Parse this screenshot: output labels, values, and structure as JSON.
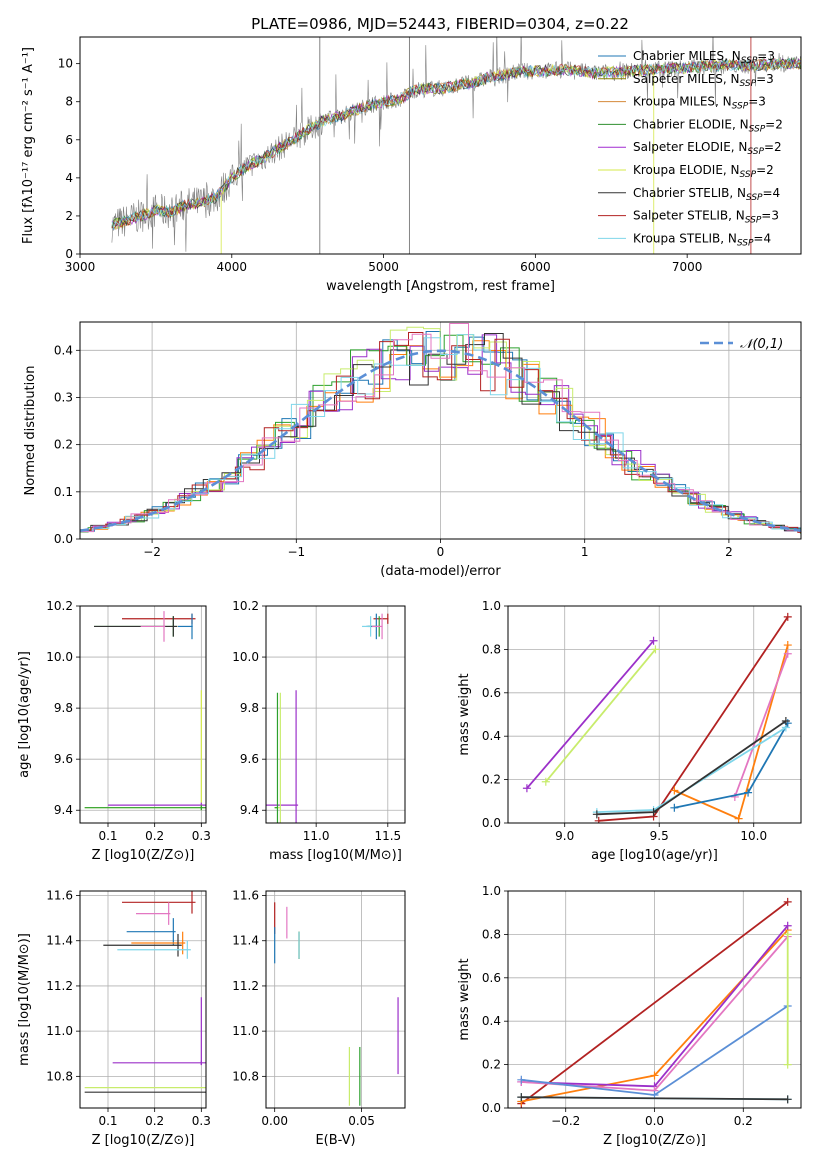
{
  "chart_data": [
    {
      "type": "line",
      "title": "PLATE=0986, MJD=52443, FIBERID=0304, z=0.22",
      "xlabel": "wavelength [Angstrom, rest frame]",
      "ylabel": "Flux [fλ10⁻¹⁷ erg cm⁻² s⁻¹ A⁻¹]",
      "xlim": [
        3000,
        7750
      ],
      "ylim": [
        0,
        11.4
      ],
      "xticks": [
        3000,
        4000,
        5000,
        6000,
        7000
      ],
      "yticks": [
        0,
        2,
        4,
        6,
        8,
        10
      ],
      "data_color": "#808080",
      "legend_position": "upper right",
      "legend": [
        {
          "label": "Chabrier MILES, N_SSP=3",
          "color": "#1f77b4"
        },
        {
          "label": "Salpeter MILES, N_SSP=3",
          "color": "#8B8000"
        },
        {
          "label": "Kroupa MILES, N_SSP=3",
          "color": "#d58a3a"
        },
        {
          "label": "Chabrier ELODIE, N_SSP=2",
          "color": "#2f8f2f"
        },
        {
          "label": "Salpeter ELODIE, N_SSP=2",
          "color": "#a12bd1"
        },
        {
          "label": "Kroupa ELODIE, N_SSP=2",
          "color": "#d4e84a"
        },
        {
          "label": "Chabrier STELIB, N_SSP=4",
          "color": "#333333"
        },
        {
          "label": "Salpeter STELIB, N_SSP=3",
          "color": "#b22222"
        },
        {
          "label": "Kroupa STELIB, N_SSP=4",
          "color": "#7fd6ea"
        }
      ],
      "spectrum_envelope": {
        "x": [
          3210,
          3400,
          3500,
          3600,
          3700,
          3800,
          3900,
          4000,
          4100,
          4200,
          4300,
          4400,
          4500,
          4600,
          4700,
          4800,
          4900,
          5000,
          5100,
          5200,
          5300,
          5400,
          5500,
          5600,
          5700,
          5800,
          5900,
          6000,
          6200,
          6400,
          6600,
          6800,
          7000,
          7200,
          7400,
          7600,
          7750
        ],
        "y": [
          1.5,
          2.0,
          2.3,
          2.2,
          2.6,
          2.7,
          3.0,
          4.0,
          4.6,
          5.0,
          5.5,
          6.0,
          6.5,
          7.0,
          7.2,
          7.5,
          7.8,
          8.0,
          8.1,
          8.6,
          8.7,
          8.7,
          8.9,
          9.0,
          9.3,
          9.4,
          9.6,
          9.6,
          9.7,
          9.5,
          9.6,
          9.7,
          9.8,
          9.9,
          9.9,
          10.0,
          10.0
        ]
      }
    },
    {
      "type": "line",
      "xlabel": "(data-model)/error",
      "ylabel": "Normed distribution",
      "xlim": [
        -2.5,
        2.5
      ],
      "ylim": [
        0,
        0.46
      ],
      "xticks": [
        -2,
        -1,
        0,
        1,
        2
      ],
      "yticks": [
        0.0,
        0.1,
        0.2,
        0.3,
        0.4
      ],
      "grid": true,
      "legend_position": "upper right",
      "series": [
        {
          "name": "𝒩(0,1)",
          "style": "dashed",
          "color": "#5b8fd6",
          "mu": 0,
          "sigma": 1
        }
      ],
      "histogram_colors": [
        "#1f77b4",
        "#ff7f0e",
        "#2ca02c",
        "#9b30c9",
        "#c8ec6c",
        "#333333",
        "#b22222",
        "#7fd6ea",
        "#e377c2"
      ]
    },
    {
      "type": "scatter",
      "xlabel": "Z [log10(Z/Z⊙)]",
      "ylabel": "age  [log10(age/yr)]",
      "xlim": [
        0.04,
        0.31
      ],
      "ylim": [
        9.35,
        10.2
      ],
      "xticks": [
        0.1,
        0.2,
        0.3
      ],
      "yticks": [
        9.4,
        9.6,
        9.8,
        10.0,
        10.2
      ],
      "grid": true,
      "points": [
        {
          "x": 0.28,
          "y": 10.15,
          "xerr": 0.15,
          "yerr": 0.02,
          "color": "#b22222"
        },
        {
          "x": 0.24,
          "y": 10.12,
          "xerr": 0.17,
          "yerr": 0.04,
          "color": "#2ca02c"
        },
        {
          "x": 0.24,
          "y": 10.12,
          "xerr": 0.17,
          "yerr": 0.04,
          "color": "#333333"
        },
        {
          "x": 0.22,
          "y": 10.12,
          "xerr": 0.05,
          "yerr": 0.06,
          "color": "#e377c2"
        },
        {
          "x": 0.28,
          "y": 10.12,
          "xerr": 0.03,
          "yerr": 0.05,
          "color": "#1f77b4"
        },
        {
          "x": 0.3,
          "y": 9.42,
          "xerr": 0.2,
          "yerr": 0.01,
          "color": "#9b30c9"
        },
        {
          "x": 0.3,
          "y": 9.41,
          "xerr": 0.25,
          "yerr": 0.01,
          "color": "#c8ec6c"
        },
        {
          "x": 0.3,
          "y": 9.41,
          "xerr": 0.25,
          "yerr": 0.01,
          "color": "#2ca02c"
        },
        {
          "x": 0.3,
          "y": 9.65,
          "xerr": 0.0,
          "yerr": 0.22,
          "color": "#d4e84a"
        }
      ]
    },
    {
      "type": "scatter",
      "xlabel": "mass [log10(M/M⊙)]",
      "xlim": [
        10.65,
        11.62
      ],
      "ylim": [
        9.35,
        10.2
      ],
      "xticks": [
        11.0,
        11.5
      ],
      "yticks": [
        9.4,
        9.6,
        9.8,
        10.0,
        10.2
      ],
      "grid": true,
      "points": [
        {
          "x": 11.5,
          "y": 10.15,
          "xerr": 0.1,
          "yerr": 0.02,
          "color": "#b22222"
        },
        {
          "x": 11.44,
          "y": 10.12,
          "xerr": 0.08,
          "yerr": 0.04,
          "color": "#2ca02c"
        },
        {
          "x": 11.42,
          "y": 10.12,
          "xerr": 0.07,
          "yerr": 0.05,
          "color": "#1f77b4"
        },
        {
          "x": 11.46,
          "y": 10.12,
          "xerr": 0.07,
          "yerr": 0.05,
          "color": "#e377c2"
        },
        {
          "x": 11.38,
          "y": 10.12,
          "xerr": 0.06,
          "yerr": 0.04,
          "color": "#7fd6ea"
        },
        {
          "x": 10.86,
          "y": 9.42,
          "xerr": 0.28,
          "yerr": 0.45,
          "color": "#9b30c9"
        },
        {
          "x": 10.75,
          "y": 9.41,
          "xerr": 0.04,
          "yerr": 0.45,
          "color": "#c8ec6c"
        },
        {
          "x": 10.73,
          "y": 9.41,
          "xerr": 0.02,
          "yerr": 0.45,
          "color": "#2ca02c"
        }
      ]
    },
    {
      "type": "line",
      "xlabel": "age  [log10(age/yr)]",
      "ylabel": "mass weight",
      "xlim": [
        8.7,
        10.25
      ],
      "ylim": [
        0,
        1.0
      ],
      "xticks": [
        9.0,
        9.5,
        10.0
      ],
      "yticks": [
        0.0,
        0.2,
        0.4,
        0.6,
        0.8,
        1.0
      ],
      "grid": true,
      "series": [
        {
          "color": "#9b30c9",
          "x": [
            8.8,
            9.47
          ],
          "y": [
            0.16,
            0.84
          ]
        },
        {
          "color": "#c8ec6c",
          "x": [
            8.9,
            9.48
          ],
          "y": [
            0.19,
            0.8
          ]
        },
        {
          "color": "#b22222",
          "x": [
            9.18,
            9.47,
            10.18
          ],
          "y": [
            0.01,
            0.03,
            0.95
          ]
        },
        {
          "color": "#ff7f0e",
          "x": [
            9.58,
            9.92,
            10.18
          ],
          "y": [
            0.15,
            0.02,
            0.82
          ]
        },
        {
          "color": "#e377c2",
          "x": [
            9.9,
            10.18
          ],
          "y": [
            0.12,
            0.78
          ]
        },
        {
          "color": "#1f77b4",
          "x": [
            9.58,
            9.97,
            10.18
          ],
          "y": [
            0.07,
            0.14,
            0.46
          ]
        },
        {
          "color": "#7fd6ea",
          "x": [
            9.17,
            9.47,
            10.17
          ],
          "y": [
            0.05,
            0.06,
            0.44
          ]
        },
        {
          "color": "#333333",
          "x": [
            9.17,
            9.47,
            10.17
          ],
          "y": [
            0.04,
            0.05,
            0.47
          ]
        }
      ]
    },
    {
      "type": "scatter",
      "xlabel": "Z [log10(Z/Z⊙)]",
      "ylabel": "mass [log10(M/M⊙)]",
      "xlim": [
        0.04,
        0.31
      ],
      "ylim": [
        10.66,
        11.62
      ],
      "xticks": [
        0.1,
        0.2,
        0.3
      ],
      "yticks": [
        10.8,
        11.0,
        11.2,
        11.4,
        11.6
      ],
      "grid": true,
      "points": [
        {
          "x": 0.28,
          "y": 11.57,
          "xerr": 0.15,
          "yerr": 0.05,
          "color": "#b22222"
        },
        {
          "x": 0.23,
          "y": 11.52,
          "xerr": 0.07,
          "yerr": 0.05,
          "color": "#e377c2"
        },
        {
          "x": 0.24,
          "y": 11.44,
          "xerr": 0.1,
          "yerr": 0.06,
          "color": "#1f77b4"
        },
        {
          "x": 0.26,
          "y": 11.39,
          "xerr": 0.11,
          "yerr": 0.05,
          "color": "#ff7f0e"
        },
        {
          "x": 0.25,
          "y": 11.38,
          "xerr": 0.16,
          "yerr": 0.05,
          "color": "#333333"
        },
        {
          "x": 0.27,
          "y": 11.36,
          "xerr": 0.15,
          "yerr": 0.04,
          "color": "#7fd6ea"
        },
        {
          "x": 0.3,
          "y": 11.0,
          "xerr": 0.0,
          "yerr": 0.15,
          "color": "#9b30c9"
        },
        {
          "x": 0.3,
          "y": 10.86,
          "xerr": 0.19,
          "yerr": 0.01,
          "color": "#9b30c9"
        },
        {
          "x": 0.3,
          "y": 10.75,
          "xerr": 0.25,
          "yerr": 0.0,
          "color": "#c8ec6c"
        },
        {
          "x": 0.3,
          "y": 10.73,
          "xerr": 0.25,
          "yerr": 0.0,
          "color": "#333333"
        }
      ]
    },
    {
      "type": "scatter",
      "xlabel": "E(B-V)",
      "xlim": [
        -0.005,
        0.075
      ],
      "ylim": [
        10.66,
        11.62
      ],
      "xticks": [
        0.0,
        0.05
      ],
      "yticks": [
        10.8,
        11.0,
        11.2,
        11.4,
        11.6
      ],
      "grid": true,
      "points": [
        {
          "x": 0.0,
          "y": 11.5,
          "yerr": 0.07,
          "color": "#b22222"
        },
        {
          "x": 0.007,
          "y": 11.48,
          "yerr": 0.07,
          "color": "#e377c2"
        },
        {
          "x": 0.0,
          "y": 11.38,
          "yerr": 0.08,
          "color": "#1f77b4"
        },
        {
          "x": 0.014,
          "y": 11.38,
          "yerr": 0.06,
          "color": "#ff7f0e"
        },
        {
          "x": 0.014,
          "y": 11.38,
          "yerr": 0.06,
          "color": "#2ca02c"
        },
        {
          "x": 0.014,
          "y": 11.38,
          "yerr": 0.06,
          "color": "#7fd6ea"
        },
        {
          "x": 0.071,
          "y": 10.98,
          "yerr": 0.17,
          "color": "#9b30c9"
        },
        {
          "x": 0.043,
          "y": 10.8,
          "yerr": 0.13,
          "color": "#c8ec6c"
        },
        {
          "x": 0.049,
          "y": 10.8,
          "yerr": 0.13,
          "color": "#2ca02c"
        }
      ]
    },
    {
      "type": "line",
      "xlabel": "Z [log10(Z/Z⊙)]",
      "ylabel": "mass weight",
      "xlim": [
        -0.33,
        0.33
      ],
      "ylim": [
        0,
        1.0
      ],
      "xticks": [
        -0.2,
        0.0,
        0.2
      ],
      "yticks": [
        0.0,
        0.2,
        0.4,
        0.6,
        0.8,
        1.0
      ],
      "grid": true,
      "series": [
        {
          "color": "#b22222",
          "x": [
            -0.3,
            0.3
          ],
          "y": [
            0.02,
            0.95
          ]
        },
        {
          "color": "#ff7f0e",
          "x": [
            -0.3,
            0.0,
            0.3
          ],
          "y": [
            0.03,
            0.15,
            0.82
          ]
        },
        {
          "color": "#9b30c9",
          "x": [
            -0.3,
            0.0,
            0.3
          ],
          "y": [
            0.12,
            0.1,
            0.84
          ]
        },
        {
          "color": "#e377c2",
          "x": [
            -0.3,
            0.0,
            0.3
          ],
          "y": [
            0.12,
            0.08,
            0.79
          ]
        },
        {
          "color": "#5b8fd6",
          "x": [
            -0.3,
            0.0,
            0.3
          ],
          "y": [
            0.13,
            0.06,
            0.47
          ]
        },
        {
          "color": "#c8ec6c",
          "x": [
            0.3,
            0.3
          ],
          "y": [
            0.2,
            0.8
          ]
        },
        {
          "color": "#7fd6ea",
          "x": [
            -0.3,
            0.3
          ],
          "y": [
            0.05,
            0.04
          ]
        },
        {
          "color": "#333333",
          "x": [
            -0.3,
            0.3
          ],
          "y": [
            0.05,
            0.04
          ]
        }
      ]
    }
  ]
}
